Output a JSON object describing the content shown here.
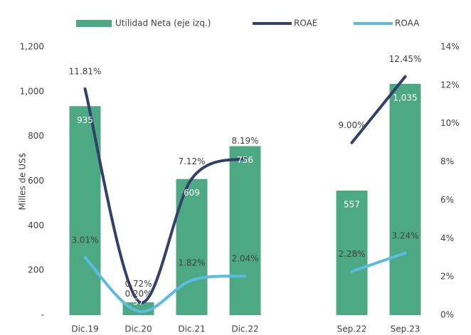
{
  "chart_data": {
    "type": "bar",
    "ylabel": "Milles de US$",
    "categories": [
      "Dic.19",
      "Dic.20",
      "Dic.21",
      "Dic.22",
      null,
      "Sep.22",
      "Sep.23"
    ],
    "series": [
      {
        "name": "Utilidad Neta (eje izq.)",
        "type": "bar",
        "color": "#4da983",
        "values": [
          935,
          57,
          609,
          756,
          null,
          557,
          1035
        ],
        "value_labels": [
          "935",
          "57",
          "609",
          "756",
          null,
          "557",
          "1,035"
        ]
      },
      {
        "name": "ROAE",
        "type": "line",
        "axis": "y2",
        "color": "#33406b",
        "values": [
          11.81,
          0.72,
          7.12,
          8.19,
          null,
          9.0,
          12.45
        ],
        "value_labels": [
          "11.81%",
          "0.72%",
          "7.12%",
          "8.19%",
          null,
          "9.00%",
          "12.45%"
        ]
      },
      {
        "name": "ROAA",
        "type": "line",
        "axis": "y2",
        "color": "#5bbbe3",
        "values": [
          3.01,
          0.2,
          1.82,
          2.04,
          null,
          2.28,
          3.24
        ],
        "value_labels": [
          "3.01%",
          "0.20%",
          "1.82%",
          "2.04%",
          null,
          "2.28%",
          "3.24%"
        ]
      }
    ],
    "ylim": [
      0,
      1200
    ],
    "yticks": [
      {
        "value": 0,
        "label": "-"
      },
      200,
      400,
      600,
      800,
      {
        "value": 1000,
        "label": "1,000"
      },
      {
        "value": 1200,
        "label": "1,200"
      }
    ],
    "y2lim": [
      0,
      14
    ],
    "y2ticks": [
      {
        "value": 0,
        "label": "0%"
      },
      {
        "value": 2,
        "label": "2%"
      },
      {
        "value": 4,
        "label": "4%"
      },
      {
        "value": 6,
        "label": "6%"
      },
      {
        "value": 8,
        "label": "8%"
      },
      {
        "value": 10,
        "label": "10%"
      },
      {
        "value": 12,
        "label": "12%"
      },
      {
        "value": 14,
        "label": "14%"
      }
    ],
    "legend": "top"
  }
}
